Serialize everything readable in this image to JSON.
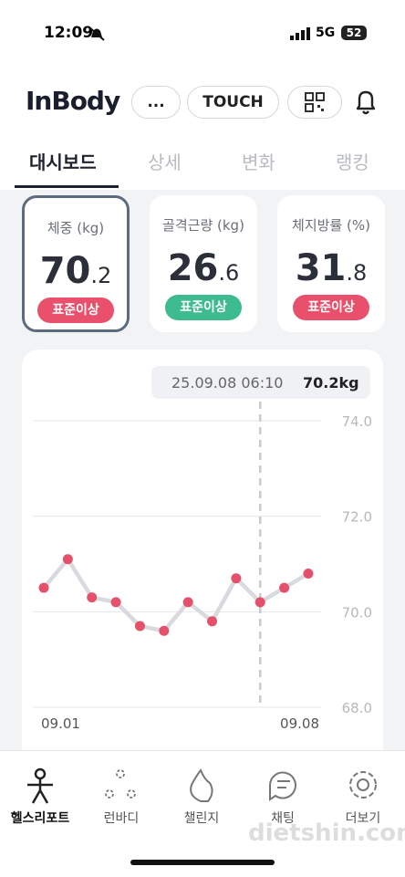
{
  "status_bar": {
    "time": "12:09",
    "network": "5G",
    "battery": "52"
  },
  "header": {
    "logo": "InBody",
    "buttons": [
      "...",
      "TOUCH"
    ]
  },
  "tabs": [
    "대시보드",
    "상세",
    "변화",
    "랭킹"
  ],
  "cards": [
    {
      "label": "체중 (kg)",
      "value_int": "70",
      "value_dec": ".2",
      "badge": "표준이상",
      "badge_color": "#e8506b",
      "selected": true
    },
    {
      "label": "골격근량 (kg)",
      "value_int": "26",
      "value_dec": ".6",
      "badge": "표준이상",
      "badge_color": "#3dbb8f",
      "selected": false
    },
    {
      "label": "체지방률 (%)",
      "value_int": "31",
      "value_dec": ".8",
      "badge": "표준이상",
      "badge_color": "#e8506b",
      "selected": false
    }
  ],
  "chart_data": {
    "type": "line",
    "tooltip": {
      "date": "25.09.08 06:10",
      "value": "70.2kg"
    },
    "categories": [
      "09.01",
      null,
      null,
      null,
      null,
      null,
      null,
      null,
      null,
      null,
      null,
      "09.08"
    ],
    "series": [
      {
        "name": null,
        "color": "#e5506a",
        "line_color": "#d8dadf",
        "values": [
          70.5,
          71.1,
          70.3,
          70.2,
          69.7,
          69.6,
          70.2,
          69.8,
          70.7,
          70.2,
          70.5,
          70.8
        ]
      }
    ],
    "marker_index": 9,
    "ylim": [
      68,
      74
    ],
    "yticks": [
      {
        "value": 68,
        "label": "68.0"
      },
      {
        "value": 70,
        "label": "70.0"
      },
      {
        "value": 72,
        "label": "72.0"
      },
      {
        "value": 74,
        "label": "74.0"
      }
    ],
    "grid": true
  },
  "bottom_nav": [
    "헬스리포트",
    "런바디",
    "챌린지",
    "채팅",
    "더보기"
  ],
  "watermark": "dietshin.com"
}
